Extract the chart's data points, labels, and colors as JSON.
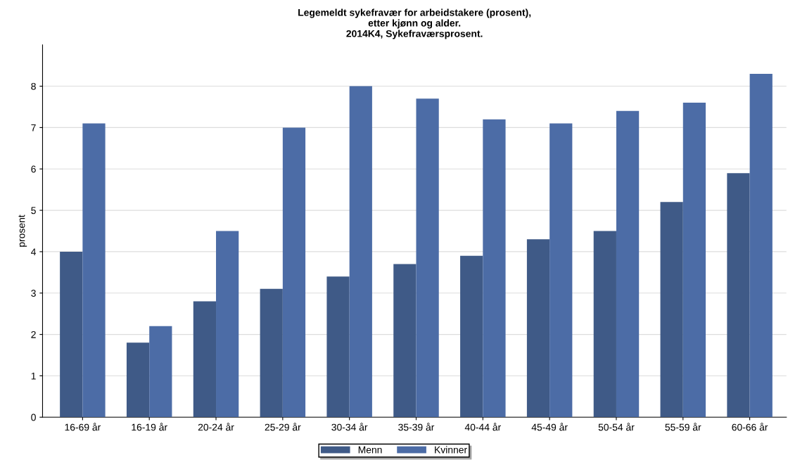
{
  "chart_data": {
    "type": "bar",
    "title": "Legemeldt sykefravær for arbeidstakere (prosent),\netter kjønn og alder.\n2014K4, Sykefraværsprosent.",
    "ylabel": "prosent",
    "categories": [
      "16-69 år",
      "16-19 år",
      "20-24 år",
      "25-29 år",
      "30-34 år",
      "35-39 år",
      "40-44 år",
      "45-49 år",
      "50-54 år",
      "55-59 år",
      "60-66 år"
    ],
    "series": [
      {
        "name": "Menn",
        "color": "#3f5a87",
        "values": [
          4.0,
          1.8,
          2.8,
          3.1,
          3.4,
          3.7,
          3.9,
          4.3,
          4.5,
          5.2,
          5.9
        ]
      },
      {
        "name": "Kvinner",
        "color": "#4c6ca6",
        "values": [
          7.1,
          2.2,
          4.5,
          7.0,
          8.0,
          7.7,
          7.2,
          7.1,
          7.4,
          7.6,
          8.3
        ]
      }
    ],
    "ylim": [
      0,
      9
    ],
    "yticks": [
      0,
      1,
      2,
      3,
      4,
      5,
      6,
      7,
      8
    ],
    "grid": "y",
    "legend": "bottom"
  }
}
